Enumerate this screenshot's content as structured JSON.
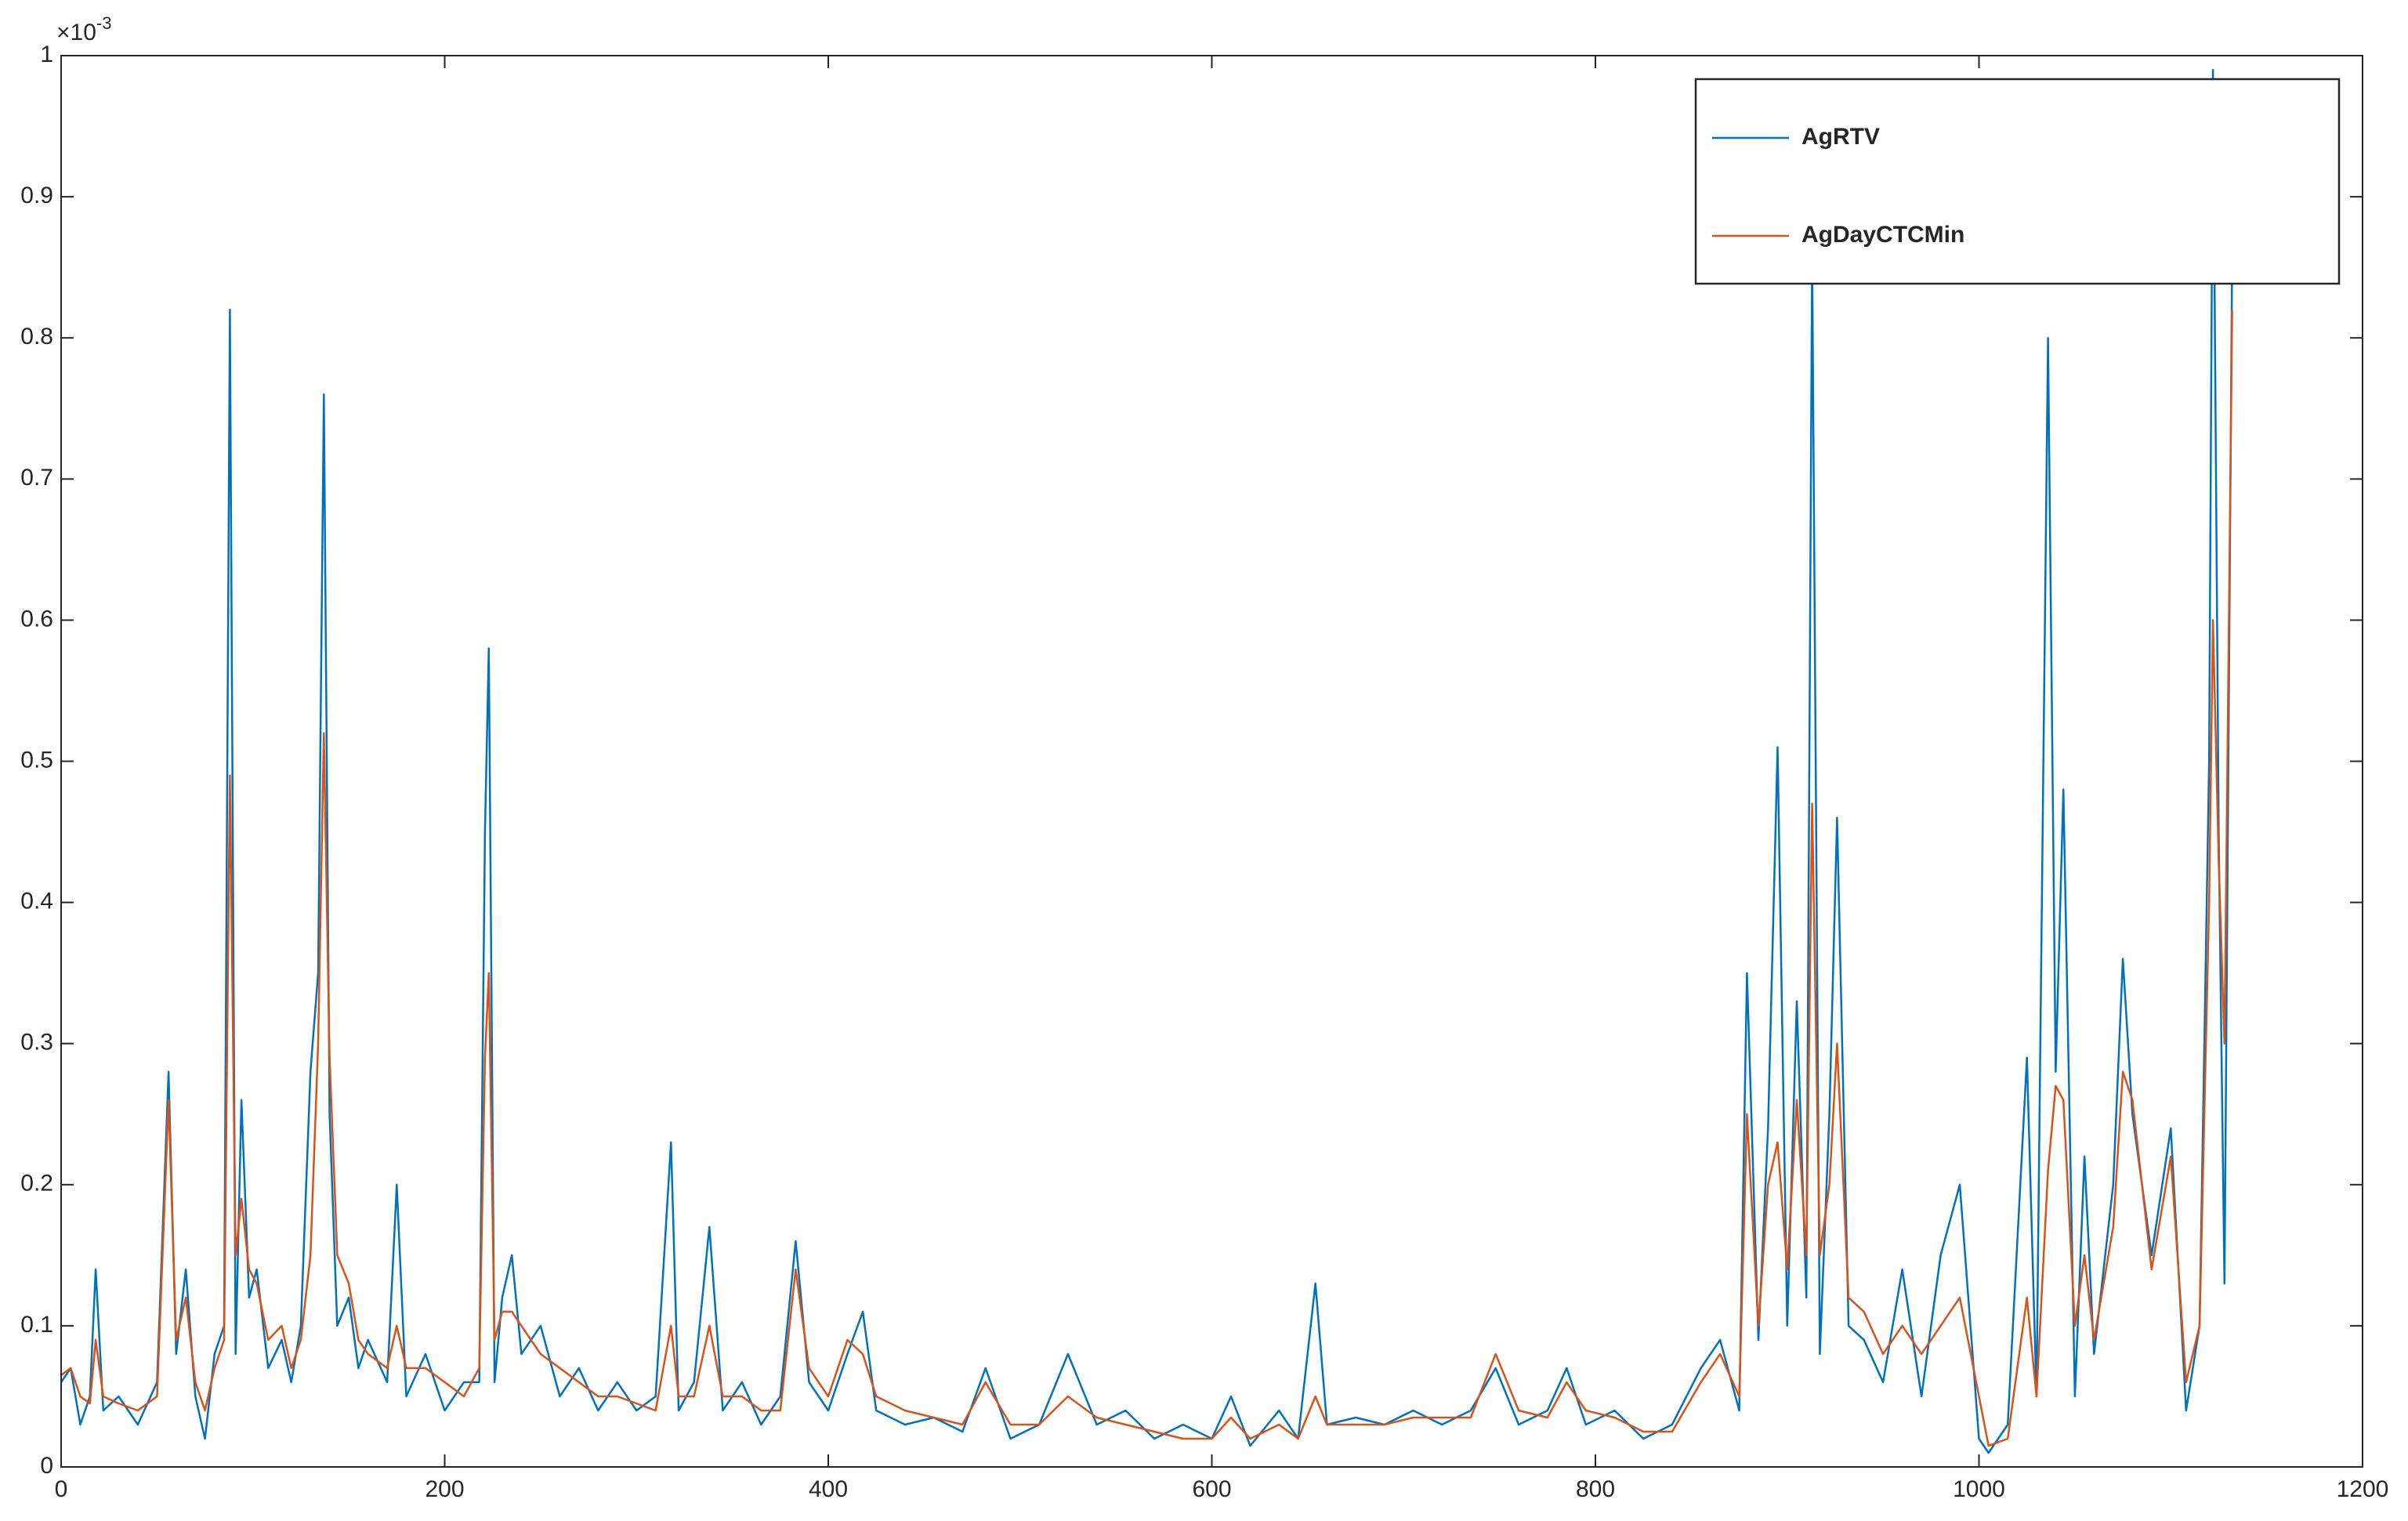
{
  "chart_data": {
    "type": "line",
    "y_multiplier": {
      "base": "×10",
      "power": "-3"
    },
    "x": [
      0,
      5,
      10,
      15,
      18,
      22,
      30,
      40,
      50,
      56,
      60,
      65,
      70,
      75,
      80,
      85,
      88,
      91,
      94,
      98,
      102,
      108,
      115,
      120,
      125,
      130,
      134,
      137,
      140,
      144,
      150,
      155,
      160,
      170,
      175,
      180,
      190,
      200,
      210,
      218,
      221,
      223,
      226,
      230,
      235,
      240,
      250,
      260,
      270,
      280,
      290,
      300,
      310,
      318,
      322,
      330,
      338,
      345,
      355,
      365,
      375,
      383,
      390,
      400,
      410,
      418,
      425,
      440,
      455,
      470,
      482,
      495,
      510,
      525,
      540,
      555,
      570,
      585,
      600,
      610,
      620,
      635,
      645,
      654,
      660,
      675,
      690,
      705,
      720,
      735,
      748,
      760,
      775,
      785,
      795,
      810,
      825,
      840,
      855,
      865,
      875,
      879,
      885,
      890,
      895,
      900,
      905,
      910,
      913,
      917,
      922,
      926,
      932,
      940,
      950,
      960,
      970,
      980,
      990,
      1000,
      1005,
      1015,
      1025,
      1030,
      1036,
      1040,
      1044,
      1050,
      1055,
      1060,
      1070,
      1075,
      1080,
      1090,
      1100,
      1108,
      1115,
      1120,
      1122,
      1125,
      1128,
      1132
    ],
    "series": [
      {
        "name": "AgRTV",
        "color": "#0072bd",
        "values": [
          0.06,
          0.07,
          0.03,
          0.05,
          0.14,
          0.04,
          0.05,
          0.03,
          0.06,
          0.28,
          0.08,
          0.14,
          0.05,
          0.02,
          0.08,
          0.1,
          0.82,
          0.08,
          0.26,
          0.12,
          0.14,
          0.07,
          0.09,
          0.06,
          0.1,
          0.28,
          0.35,
          0.76,
          0.25,
          0.1,
          0.12,
          0.07,
          0.09,
          0.06,
          0.2,
          0.05,
          0.08,
          0.04,
          0.06,
          0.06,
          0.45,
          0.58,
          0.06,
          0.12,
          0.15,
          0.08,
          0.1,
          0.05,
          0.07,
          0.04,
          0.06,
          0.04,
          0.05,
          0.23,
          0.04,
          0.06,
          0.17,
          0.04,
          0.06,
          0.03,
          0.05,
          0.16,
          0.06,
          0.04,
          0.08,
          0.11,
          0.04,
          0.03,
          0.035,
          0.025,
          0.07,
          0.02,
          0.03,
          0.08,
          0.03,
          0.04,
          0.02,
          0.03,
          0.02,
          0.05,
          0.015,
          0.04,
          0.02,
          0.13,
          0.03,
          0.035,
          0.03,
          0.04,
          0.03,
          0.04,
          0.07,
          0.03,
          0.04,
          0.07,
          0.03,
          0.04,
          0.02,
          0.03,
          0.07,
          0.09,
          0.04,
          0.35,
          0.09,
          0.24,
          0.51,
          0.1,
          0.33,
          0.12,
          0.86,
          0.08,
          0.25,
          0.46,
          0.1,
          0.09,
          0.06,
          0.14,
          0.05,
          0.15,
          0.2,
          0.02,
          0.01,
          0.03,
          0.29,
          0.05,
          0.8,
          0.28,
          0.48,
          0.05,
          0.22,
          0.08,
          0.2,
          0.36,
          0.25,
          0.15,
          0.24,
          0.04,
          0.1,
          0.5,
          0.99,
          0.45,
          0.13,
          0.86
        ]
      },
      {
        "name": "AgDayCTCMin",
        "color": "#d95319",
        "values": [
          0.065,
          0.07,
          0.05,
          0.045,
          0.09,
          0.05,
          0.045,
          0.04,
          0.05,
          0.26,
          0.09,
          0.12,
          0.06,
          0.04,
          0.07,
          0.09,
          0.49,
          0.15,
          0.19,
          0.14,
          0.13,
          0.09,
          0.1,
          0.07,
          0.09,
          0.15,
          0.3,
          0.52,
          0.29,
          0.15,
          0.13,
          0.09,
          0.08,
          0.07,
          0.1,
          0.07,
          0.07,
          0.06,
          0.05,
          0.07,
          0.29,
          0.35,
          0.09,
          0.11,
          0.11,
          0.1,
          0.08,
          0.07,
          0.06,
          0.05,
          0.05,
          0.045,
          0.04,
          0.1,
          0.05,
          0.05,
          0.1,
          0.05,
          0.05,
          0.04,
          0.04,
          0.14,
          0.07,
          0.05,
          0.09,
          0.08,
          0.05,
          0.04,
          0.035,
          0.03,
          0.06,
          0.03,
          0.03,
          0.05,
          0.035,
          0.03,
          0.025,
          0.02,
          0.02,
          0.035,
          0.02,
          0.03,
          0.02,
          0.05,
          0.03,
          0.03,
          0.03,
          0.035,
          0.035,
          0.035,
          0.08,
          0.04,
          0.035,
          0.06,
          0.04,
          0.035,
          0.025,
          0.025,
          0.06,
          0.08,
          0.05,
          0.25,
          0.1,
          0.2,
          0.23,
          0.14,
          0.26,
          0.15,
          0.47,
          0.15,
          0.2,
          0.3,
          0.12,
          0.11,
          0.08,
          0.1,
          0.08,
          0.1,
          0.12,
          0.05,
          0.015,
          0.02,
          0.12,
          0.05,
          0.21,
          0.27,
          0.26,
          0.1,
          0.15,
          0.09,
          0.17,
          0.28,
          0.26,
          0.14,
          0.22,
          0.06,
          0.1,
          0.4,
          0.6,
          0.43,
          0.3,
          0.82
        ]
      }
    ],
    "xlim": [
      0,
      1200
    ],
    "xticks": [
      0,
      200,
      400,
      600,
      800,
      1000,
      1200
    ],
    "ylim": [
      0,
      1
    ],
    "yticks": [
      0,
      0.1,
      0.2,
      0.3,
      0.4,
      0.5,
      0.6,
      0.7,
      0.8,
      0.9,
      1
    ],
    "grid": false,
    "legend": "northeast"
  }
}
